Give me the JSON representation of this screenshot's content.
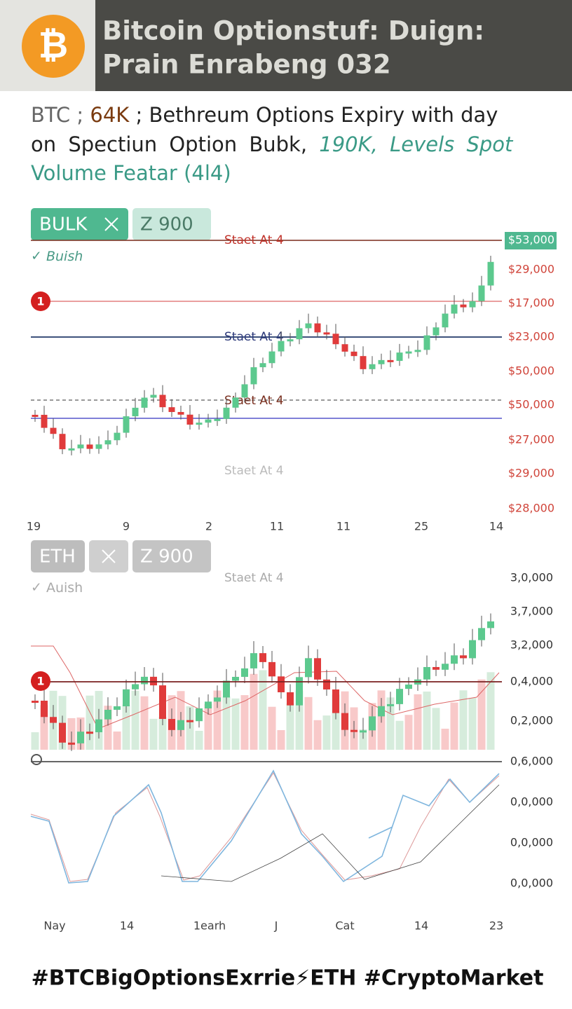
{
  "header": {
    "logo": "₿",
    "title_lines": [
      "Bitcoin Optionstuf: Duign:",
      "Prain Enrabeng 032"
    ]
  },
  "subtitle": {
    "lines": [
      [
        "BTC ; ",
        "64K",
        " ; Bethreum Options Expiry with day"
      ],
      [
        "on Spectiun Option Bubk, ",
        "190K, ",
        "Levels Spot"
      ],
      [
        "Volume Featar (4l4)"
      ]
    ]
  },
  "btc_panel": {
    "tags": [
      "BULK",
      "Z 900"
    ],
    "trend": "Buish",
    "badge": "1",
    "level_labels": [
      "Staet At 4",
      "Staet At 4",
      "Staet At 4",
      "Staet At 4"
    ],
    "price_labels": [
      "$53,000",
      "$29,000",
      "$17,000",
      "$23,000",
      "$50,000",
      "$50,000",
      "$27,000",
      "$29,000",
      "$28,000"
    ],
    "date_labels": [
      "19",
      "9",
      "2",
      "11",
      "11",
      "25",
      "14"
    ]
  },
  "eth_panel": {
    "tags": [
      "ETH",
      "Z 900"
    ],
    "trend": "Auish",
    "badge": "1",
    "level_label": "Staet At 4",
    "price_labels": [
      "3,0,000",
      "3,7,000",
      "3,2,000",
      "0,4,000",
      "0,2,000",
      "0,6,000",
      "0,0,000",
      "0,0,000",
      "0,0,000"
    ],
    "date_labels": [
      "Nay",
      "14",
      "1earh",
      "J",
      "Cat",
      "14",
      "23"
    ]
  },
  "footer": {
    "hashtags": "#BTCBigOptionsExrrie⚡ETH #CryptoMarket"
  }
}
